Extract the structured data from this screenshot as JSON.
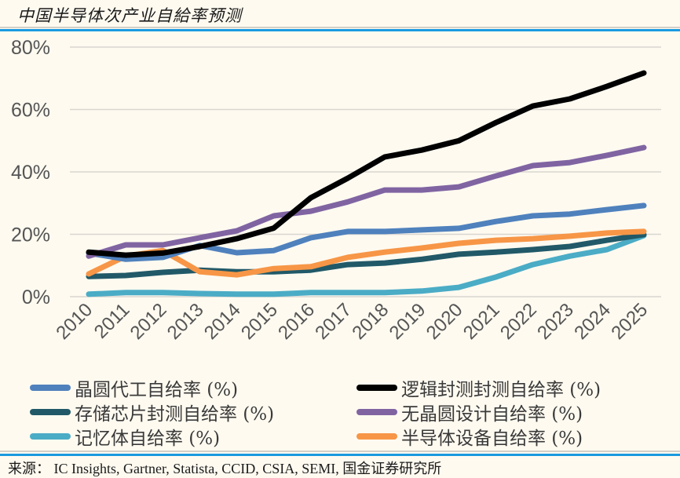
{
  "page": {
    "title": "中国半导体次产业自給率预测",
    "source": "来源： IC Insights, Gartner, Statista, CCID, CSIA, SEMI, 国金证券研究所"
  },
  "chart_data": {
    "type": "line",
    "title": "中国半导体次产业自給率预测",
    "xlabel": "",
    "ylabel": "",
    "x": [
      "2010",
      "2011",
      "2012",
      "2013",
      "2014",
      "2015",
      "2016",
      "2017",
      "2018",
      "2019",
      "2020",
      "2021",
      "2022",
      "2023",
      "2024",
      "2025"
    ],
    "ylim": [
      0,
      80
    ],
    "yticks": [
      0,
      20,
      40,
      60,
      80
    ],
    "ytick_labels": [
      "0%",
      "20%",
      "40%",
      "60%",
      "80%"
    ],
    "grid": true,
    "legend_position": "bottom",
    "series": [
      {
        "name": "晶圆代工自给率 (%)",
        "color": "#4f81bd",
        "values": [
          14.0,
          12.0,
          12.6,
          16.4,
          14.1,
          14.8,
          18.9,
          20.9,
          20.9,
          21.4,
          21.9,
          24.1,
          25.9,
          26.5,
          27.9,
          29.2
        ]
      },
      {
        "name": "逻辑封测封测自给率 (%)",
        "color": "#000000",
        "values": [
          14.3,
          13.3,
          14.0,
          16.1,
          18.6,
          22.0,
          31.7,
          38.0,
          44.8,
          47.0,
          50.0,
          55.8,
          61.1,
          63.4,
          67.4,
          71.7
        ]
      },
      {
        "name": "存储芯片封测自给率 (%)",
        "color": "#215968",
        "values": [
          6.5,
          6.8,
          7.8,
          8.5,
          8.0,
          8.0,
          8.5,
          10.3,
          10.8,
          12.0,
          13.6,
          14.3,
          15.1,
          16.1,
          18.1,
          19.9
        ]
      },
      {
        "name": "无晶圆设计自给率 (%)",
        "color": "#8064a2",
        "values": [
          13.0,
          16.6,
          16.6,
          18.9,
          21.1,
          25.9,
          27.4,
          30.4,
          34.2,
          34.2,
          35.2,
          38.7,
          42.0,
          43.0,
          45.3,
          47.8
        ]
      },
      {
        "name": "记忆体自给率 (%)",
        "color": "#4bacc6",
        "values": [
          0.8,
          1.3,
          1.3,
          1.0,
          0.8,
          0.8,
          1.3,
          1.3,
          1.3,
          1.8,
          3.0,
          6.3,
          10.3,
          13.0,
          15.1,
          19.6
        ]
      },
      {
        "name": "半导体设备自给率 (%)",
        "color": "#f79646",
        "values": [
          7.3,
          13.0,
          14.8,
          8.0,
          7.0,
          9.0,
          9.6,
          12.6,
          14.3,
          15.6,
          17.1,
          18.1,
          18.6,
          19.4,
          20.4,
          20.9
        ]
      }
    ]
  }
}
